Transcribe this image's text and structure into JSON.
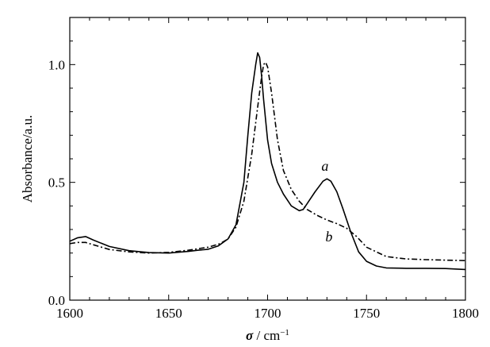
{
  "chart_data": {
    "type": "line",
    "xlabel_symbol": "σ",
    "xlabel_unit": " / cm",
    "xlabel_exp": "−1",
    "ylabel": "Absorbance/a.u.",
    "xlim": [
      1600,
      1800
    ],
    "ylim": [
      0,
      1.2
    ],
    "xticks_major": [
      1600,
      1650,
      1700,
      1750,
      1800
    ],
    "xtick_labels": [
      "1600",
      "1650",
      "1700",
      "1750",
      "1800"
    ],
    "yticks_major": [
      0,
      0.5,
      1.0
    ],
    "ytick_labels": [
      "0.0",
      "0.5",
      "1.0"
    ],
    "grid": false,
    "series": [
      {
        "name": "a",
        "style": "solid",
        "color": "#000000",
        "x": [
          1600,
          1604,
          1608,
          1612,
          1620,
          1630,
          1640,
          1650,
          1660,
          1665,
          1670,
          1675,
          1680,
          1684,
          1688,
          1690,
          1692,
          1694,
          1695,
          1696,
          1697,
          1698,
          1700,
          1702,
          1705,
          1708,
          1712,
          1716,
          1718,
          1720,
          1724,
          1728,
          1730,
          1732,
          1735,
          1738,
          1742,
          1746,
          1750,
          1755,
          1760,
          1770,
          1780,
          1790,
          1800
        ],
        "y": [
          0.25,
          0.265,
          0.27,
          0.255,
          0.228,
          0.21,
          0.202,
          0.2,
          0.207,
          0.212,
          0.216,
          0.23,
          0.26,
          0.32,
          0.5,
          0.7,
          0.88,
          1.0,
          1.05,
          1.03,
          0.95,
          0.85,
          0.68,
          0.58,
          0.5,
          0.45,
          0.4,
          0.38,
          0.385,
          0.41,
          0.46,
          0.505,
          0.515,
          0.505,
          0.46,
          0.39,
          0.29,
          0.205,
          0.165,
          0.145,
          0.137,
          0.135,
          0.135,
          0.134,
          0.13
        ]
      },
      {
        "name": "b",
        "style": "dash-dot",
        "color": "#000000",
        "x": [
          1600,
          1604,
          1608,
          1612,
          1620,
          1630,
          1640,
          1650,
          1660,
          1670,
          1676,
          1680,
          1684,
          1688,
          1692,
          1695,
          1697,
          1698,
          1699,
          1700,
          1702,
          1705,
          1708,
          1712,
          1716,
          1720,
          1725,
          1730,
          1735,
          1740,
          1745,
          1750,
          1760,
          1770,
          1780,
          1790,
          1800
        ],
        "y": [
          0.24,
          0.245,
          0.245,
          0.235,
          0.215,
          0.205,
          0.2,
          0.203,
          0.212,
          0.225,
          0.24,
          0.26,
          0.31,
          0.42,
          0.62,
          0.82,
          0.95,
          1.0,
          1.01,
          0.99,
          0.88,
          0.68,
          0.55,
          0.47,
          0.42,
          0.385,
          0.36,
          0.34,
          0.325,
          0.305,
          0.27,
          0.225,
          0.185,
          0.175,
          0.172,
          0.17,
          0.168
        ]
      }
    ],
    "annotations": [
      {
        "text": "a",
        "x": 1729,
        "y": 0.55
      },
      {
        "text": "b",
        "x": 1731,
        "y": 0.25
      }
    ]
  }
}
